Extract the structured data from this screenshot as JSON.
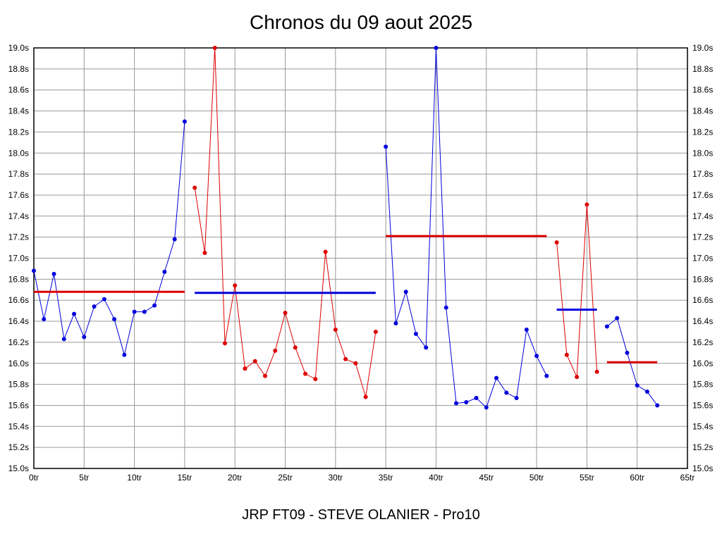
{
  "chart_data": {
    "type": "line",
    "title": "Chronos du 09 aout 2025",
    "footer": "JRP FT09 - STEVE OLANIER - Pro10",
    "x_unit": "tr",
    "y_unit": "s",
    "xlim": [
      0,
      65
    ],
    "ylim": [
      15.0,
      19.0
    ],
    "x_tick_step": 5,
    "y_tick_step": 0.2,
    "grid": true,
    "grid_color": "#999999",
    "axis_color": "#000000",
    "colors": {
      "blue": "#0000dd",
      "red": "#dd0000"
    },
    "legend": null,
    "segments": [
      {
        "name": "stint-1",
        "color": "blue",
        "start_lap": 0,
        "times": [
          16.88,
          16.42,
          16.85,
          16.23,
          16.47,
          16.25,
          16.54,
          16.61,
          16.42,
          16.08,
          16.49,
          16.49,
          16.55,
          16.87,
          17.18,
          18.3
        ]
      },
      {
        "name": "stint-2",
        "color": "red",
        "start_lap": 16,
        "times": [
          17.67,
          17.05,
          19.0,
          16.19,
          16.74,
          15.95,
          16.02,
          15.88,
          16.12,
          16.48,
          16.15,
          15.9,
          15.85,
          17.06,
          16.32,
          16.04,
          16.0,
          15.68,
          16.3
        ]
      },
      {
        "name": "stint-3",
        "color": "blue",
        "start_lap": 35,
        "times": [
          18.06,
          16.38,
          16.68,
          16.28,
          16.15,
          19.0,
          16.53,
          15.62,
          15.63,
          15.67,
          15.58,
          15.86,
          15.72,
          15.67,
          16.32,
          16.07,
          15.88
        ]
      },
      {
        "name": "stint-4",
        "color": "red",
        "start_lap": 52,
        "times": [
          17.15,
          16.08,
          15.87,
          17.51,
          15.92
        ]
      },
      {
        "name": "stint-5",
        "color": "blue",
        "start_lap": 57,
        "times": [
          16.35,
          16.43,
          16.1,
          15.79,
          15.73,
          15.6
        ]
      }
    ],
    "average_lines": [
      {
        "color": "red",
        "value": 16.68,
        "from_lap": 0,
        "to_lap": 15
      },
      {
        "color": "blue",
        "value": 16.67,
        "from_lap": 16,
        "to_lap": 34
      },
      {
        "color": "red",
        "value": 17.21,
        "from_lap": 35,
        "to_lap": 51
      },
      {
        "color": "blue",
        "value": 16.51,
        "from_lap": 52,
        "to_lap": 56
      },
      {
        "color": "red",
        "value": 16.01,
        "from_lap": 57,
        "to_lap": 62
      }
    ]
  }
}
